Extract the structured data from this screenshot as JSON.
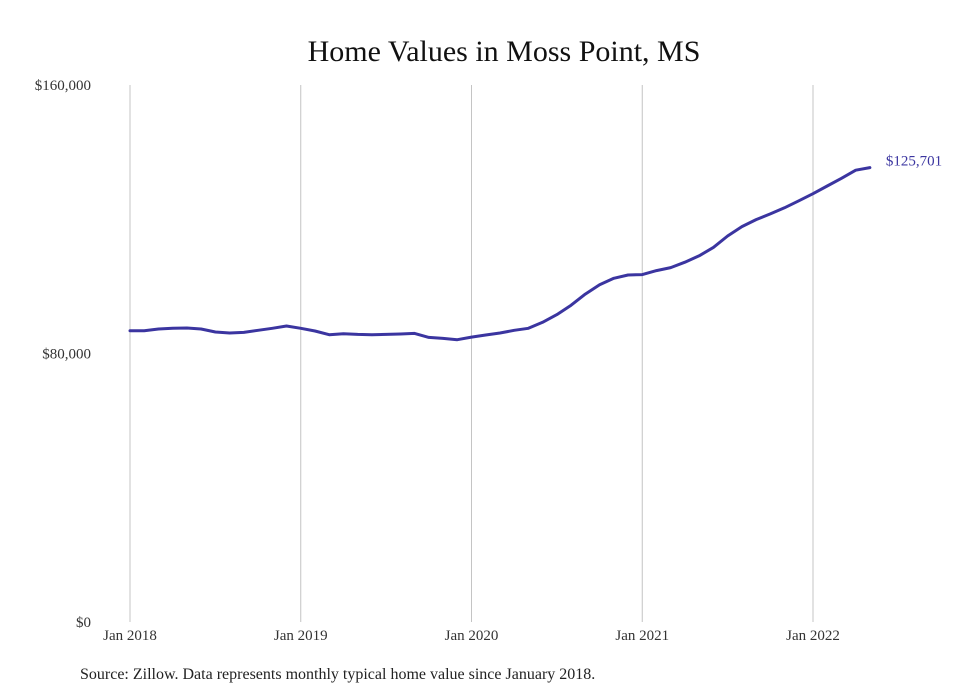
{
  "chart_data": {
    "type": "line",
    "title": "Home Values in Moss Point, MS",
    "xlabel": "",
    "ylabel": "",
    "ylim": [
      0,
      160000
    ],
    "xlim": [
      "2018-01",
      "2022-05"
    ],
    "y_ticks": [
      {
        "value": 0,
        "label": "$0"
      },
      {
        "value": 80000,
        "label": "$80,000"
      },
      {
        "value": 160000,
        "label": "$160,000"
      }
    ],
    "x_ticks": [
      {
        "value": "2018-01",
        "label": "Jan 2018"
      },
      {
        "value": "2019-01",
        "label": "Jan 2019"
      },
      {
        "value": "2020-01",
        "label": "Jan 2020"
      },
      {
        "value": "2021-01",
        "label": "Jan 2021"
      },
      {
        "value": "2022-01",
        "label": "Jan 2022"
      }
    ],
    "grid": "vertical",
    "line_color": "#3b35a0",
    "end_label": "$125,701",
    "x": [
      "2018-01",
      "2018-02",
      "2018-03",
      "2018-04",
      "2018-05",
      "2018-06",
      "2018-07",
      "2018-08",
      "2018-09",
      "2018-10",
      "2018-11",
      "2018-12",
      "2019-01",
      "2019-02",
      "2019-03",
      "2019-04",
      "2019-05",
      "2019-06",
      "2019-07",
      "2019-08",
      "2019-09",
      "2019-10",
      "2019-11",
      "2019-12",
      "2020-01",
      "2020-02",
      "2020-03",
      "2020-04",
      "2020-05",
      "2020-06",
      "2020-07",
      "2020-08",
      "2020-09",
      "2020-10",
      "2020-11",
      "2020-12",
      "2021-01",
      "2021-02",
      "2021-03",
      "2021-04",
      "2021-05",
      "2021-06",
      "2021-07",
      "2021-08",
      "2021-09",
      "2021-10",
      "2021-11",
      "2021-12",
      "2022-01",
      "2022-02",
      "2022-03",
      "2022-04",
      "2022-05"
    ],
    "series": [
      {
        "values": [
          86800,
          86800,
          87300,
          87500,
          87600,
          87300,
          86400,
          86100,
          86300,
          86900,
          87500,
          88200,
          87500,
          86700,
          85600,
          85900,
          85700,
          85600,
          85700,
          85800,
          86000,
          84800,
          84500,
          84100,
          84900,
          85500,
          86100,
          86900,
          87500,
          89300,
          91600,
          94400,
          97700,
          100500,
          102400,
          103400,
          103500,
          104700,
          105600,
          107200,
          109100,
          111600,
          115000,
          117800,
          119900,
          121600,
          123400,
          125500,
          127600,
          129900,
          132200,
          134600,
          125701
        ]
      }
    ]
  },
  "footer": {
    "source": "Source: Zillow. Data represents monthly typical home value since January 2018."
  }
}
